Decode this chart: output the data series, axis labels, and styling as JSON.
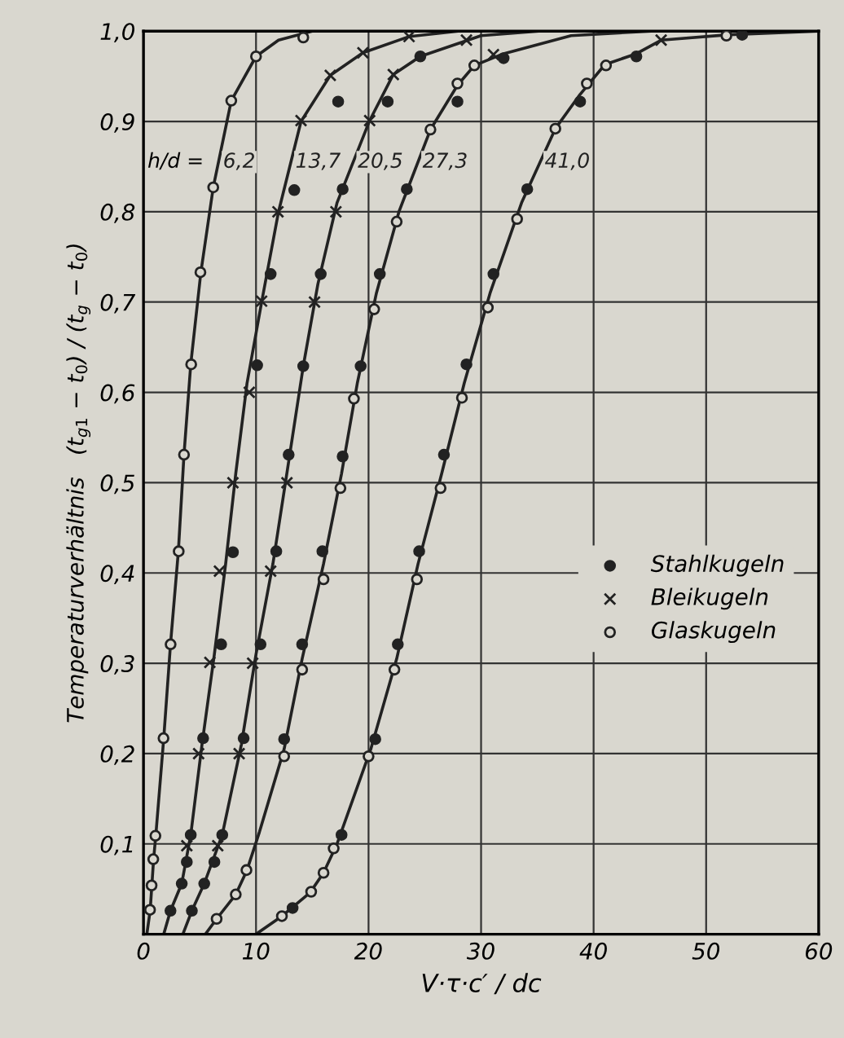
{
  "chart_data": {
    "type": "line",
    "xlabel": "V·τ·c′ / dc",
    "ylabel": "Temperaturverhältnis   (t$_{g1}$ − t$_{0}$) / (t$_{g}$ − t$_{0}$)",
    "xlim": [
      0,
      60
    ],
    "ylim": [
      0,
      1.0
    ],
    "xticks": [
      0,
      10,
      20,
      30,
      40,
      50,
      60
    ],
    "yticks": [
      {
        "value": 0.1,
        "label": "0,1"
      },
      {
        "value": 0.2,
        "label": "0,2"
      },
      {
        "value": 0.3,
        "label": "0,3"
      },
      {
        "value": 0.4,
        "label": "0,4"
      },
      {
        "value": 0.5,
        "label": "0,5"
      },
      {
        "value": 0.6,
        "label": "0,6"
      },
      {
        "value": 0.7,
        "label": "0,7"
      },
      {
        "value": 0.8,
        "label": "0,8"
      },
      {
        "value": 0.9,
        "label": "0,9"
      },
      {
        "value": 1.0,
        "label": "1,0"
      }
    ],
    "grid": true,
    "legend": "bottom right",
    "annotations": [
      "h/d ="
    ],
    "series": [
      {
        "name": "6,2",
        "color": "#222222",
        "marker": "none",
        "line_style": "solid",
        "x": [
          0.3,
          0.6,
          0.9,
          1.1,
          1.8,
          2.4,
          3.1,
          3.6,
          4.2,
          5.1,
          6.2,
          7.8,
          10,
          12,
          15
        ],
        "values": [
          0,
          0.027,
          0.083,
          0.11,
          0.217,
          0.321,
          0.424,
          0.531,
          0.631,
          0.733,
          0.827,
          0.923,
          0.972,
          0.99,
          1.0
        ]
      },
      {
        "name": "13,7",
        "color": "#222222",
        "marker": "none",
        "line_style": "solid",
        "x": [
          1.8,
          2.4,
          3.4,
          4.2,
          5.2,
          6.3,
          7.3,
          8.2,
          9.2,
          10.5,
          12,
          14,
          16.6,
          19.5,
          23.6,
          28
        ],
        "values": [
          0,
          0.026,
          0.056,
          0.11,
          0.21,
          0.31,
          0.41,
          0.51,
          0.61,
          0.7,
          0.8,
          0.9,
          0.951,
          0.976,
          0.994,
          1.0
        ]
      },
      {
        "name": "20,5",
        "color": "#222222",
        "marker": "none",
        "line_style": "solid",
        "x": [
          3.5,
          4.3,
          5.4,
          7,
          8.7,
          10,
          11.5,
          12.8,
          14.2,
          15.5,
          17.2,
          20.1,
          22.2,
          24.6,
          30,
          35
        ],
        "values": [
          0,
          0.026,
          0.056,
          0.11,
          0.21,
          0.31,
          0.41,
          0.515,
          0.629,
          0.72,
          0.81,
          0.901,
          0.952,
          0.972,
          0.995,
          1.0
        ]
      },
      {
        "name": "27,3",
        "color": "#222222",
        "marker": "none",
        "line_style": "solid",
        "x": [
          5.5,
          6.5,
          8.2,
          9.2,
          10.3,
          12.5,
          14.1,
          16,
          17.6,
          19,
          20.7,
          22.7,
          25.5,
          27.9,
          29.4,
          32,
          38,
          45
        ],
        "values": [
          0,
          0.017,
          0.044,
          0.071,
          0.113,
          0.205,
          0.305,
          0.41,
          0.51,
          0.61,
          0.71,
          0.8,
          0.891,
          0.94,
          0.962,
          0.975,
          0.995,
          1.0
        ]
      },
      {
        "name": "41,0",
        "color": "#222222",
        "marker": "none",
        "line_style": "solid",
        "x": [
          10,
          12.3,
          14.8,
          16,
          17.2,
          20.2,
          22.5,
          24.4,
          26.5,
          28.5,
          30.8,
          33.6,
          36.6,
          38.8,
          41,
          43.8,
          46,
          52,
          60
        ],
        "values": [
          0,
          0.02,
          0.046,
          0.068,
          0.1,
          0.205,
          0.305,
          0.41,
          0.51,
          0.61,
          0.71,
          0.81,
          0.892,
          0.93,
          0.963,
          0.975,
          0.99,
          0.996,
          1.0
        ]
      },
      {
        "type": "scatter",
        "name": "Stahlkugeln",
        "color": "#222222",
        "marker": "circle",
        "x": [
          13.4,
          11.3,
          10.1,
          7.95,
          6.9,
          5.3,
          4.2,
          3.85,
          3.4,
          2.4,
          17.3,
          21.7,
          24.6,
          17.7,
          15.75,
          14.2,
          12.9,
          11.8,
          10.4,
          8.9,
          7.0,
          6.3,
          5.4,
          4.3,
          27.9,
          23.4,
          21.0,
          19.3,
          17.7,
          15.9,
          14.1,
          12.5,
          32,
          38.8,
          34.1,
          31.1,
          28.7,
          26.7,
          24.5,
          22.6,
          20.6,
          17.6,
          13.25,
          43.8,
          53.2
        ],
        "values": [
          0.824,
          0.731,
          0.63,
          0.423,
          0.321,
          0.217,
          0.11,
          0.08,
          0.056,
          0.026,
          0.922,
          0.922,
          0.972,
          0.825,
          0.731,
          0.629,
          0.531,
          0.424,
          0.321,
          0.217,
          0.11,
          0.08,
          0.056,
          0.026,
          0.922,
          0.825,
          0.731,
          0.629,
          0.529,
          0.424,
          0.321,
          0.216,
          0.97,
          0.922,
          0.825,
          0.731,
          0.631,
          0.531,
          0.424,
          0.321,
          0.216,
          0.11,
          0.029,
          0.972,
          0.996
        ]
      },
      {
        "type": "scatter",
        "name": "Bleikugeln",
        "color": "#222222",
        "marker": "cross",
        "x": [
          14.0,
          11.95,
          10.5,
          9.4,
          7.95,
          6.75,
          5.9,
          4.9,
          3.85,
          16.6,
          19.5,
          23.6,
          20.1,
          22.2,
          17.1,
          15.2,
          12.75,
          11.3,
          9.7,
          8.5,
          6.6,
          31.1,
          28.7,
          46
        ],
        "values": [
          0.901,
          0.8,
          0.701,
          0.6,
          0.5,
          0.402,
          0.301,
          0.2,
          0.098,
          0.951,
          0.976,
          0.994,
          0.901,
          0.952,
          0.8,
          0.7,
          0.5,
          0.402,
          0.3,
          0.2,
          0.098,
          0.974,
          0.99,
          0.99
        ]
      },
      {
        "type": "scatter",
        "name": "Glaskugeln",
        "color": "#222222",
        "marker": "circle",
        "x": [
          14.2,
          10.0,
          7.8,
          6.2,
          5.06,
          4.24,
          3.6,
          3.13,
          2.41,
          1.78,
          1.06,
          0.87,
          0.72,
          0.58,
          29.4,
          27.9,
          25.5,
          22.5,
          20.5,
          18.7,
          17.5,
          16.0,
          14.1,
          12.5,
          9.15,
          8.2,
          6.5,
          41.1,
          39.4,
          36.6,
          33.2,
          30.6,
          28.3,
          26.4,
          24.3,
          22.3,
          20.0,
          16.9,
          16.0,
          14.9,
          12.3,
          51.8
        ],
        "values": [
          0.993,
          0.972,
          0.923,
          0.827,
          0.733,
          0.631,
          0.531,
          0.424,
          0.321,
          0.217,
          0.109,
          0.083,
          0.054,
          0.027,
          0.962,
          0.942,
          0.891,
          0.789,
          0.692,
          0.593,
          0.494,
          0.393,
          0.293,
          0.197,
          0.071,
          0.044,
          0.017,
          0.962,
          0.942,
          0.892,
          0.792,
          0.694,
          0.594,
          0.494,
          0.393,
          0.293,
          0.197,
          0.095,
          0.068,
          0.047,
          0.02,
          0.995
        ]
      }
    ]
  }
}
